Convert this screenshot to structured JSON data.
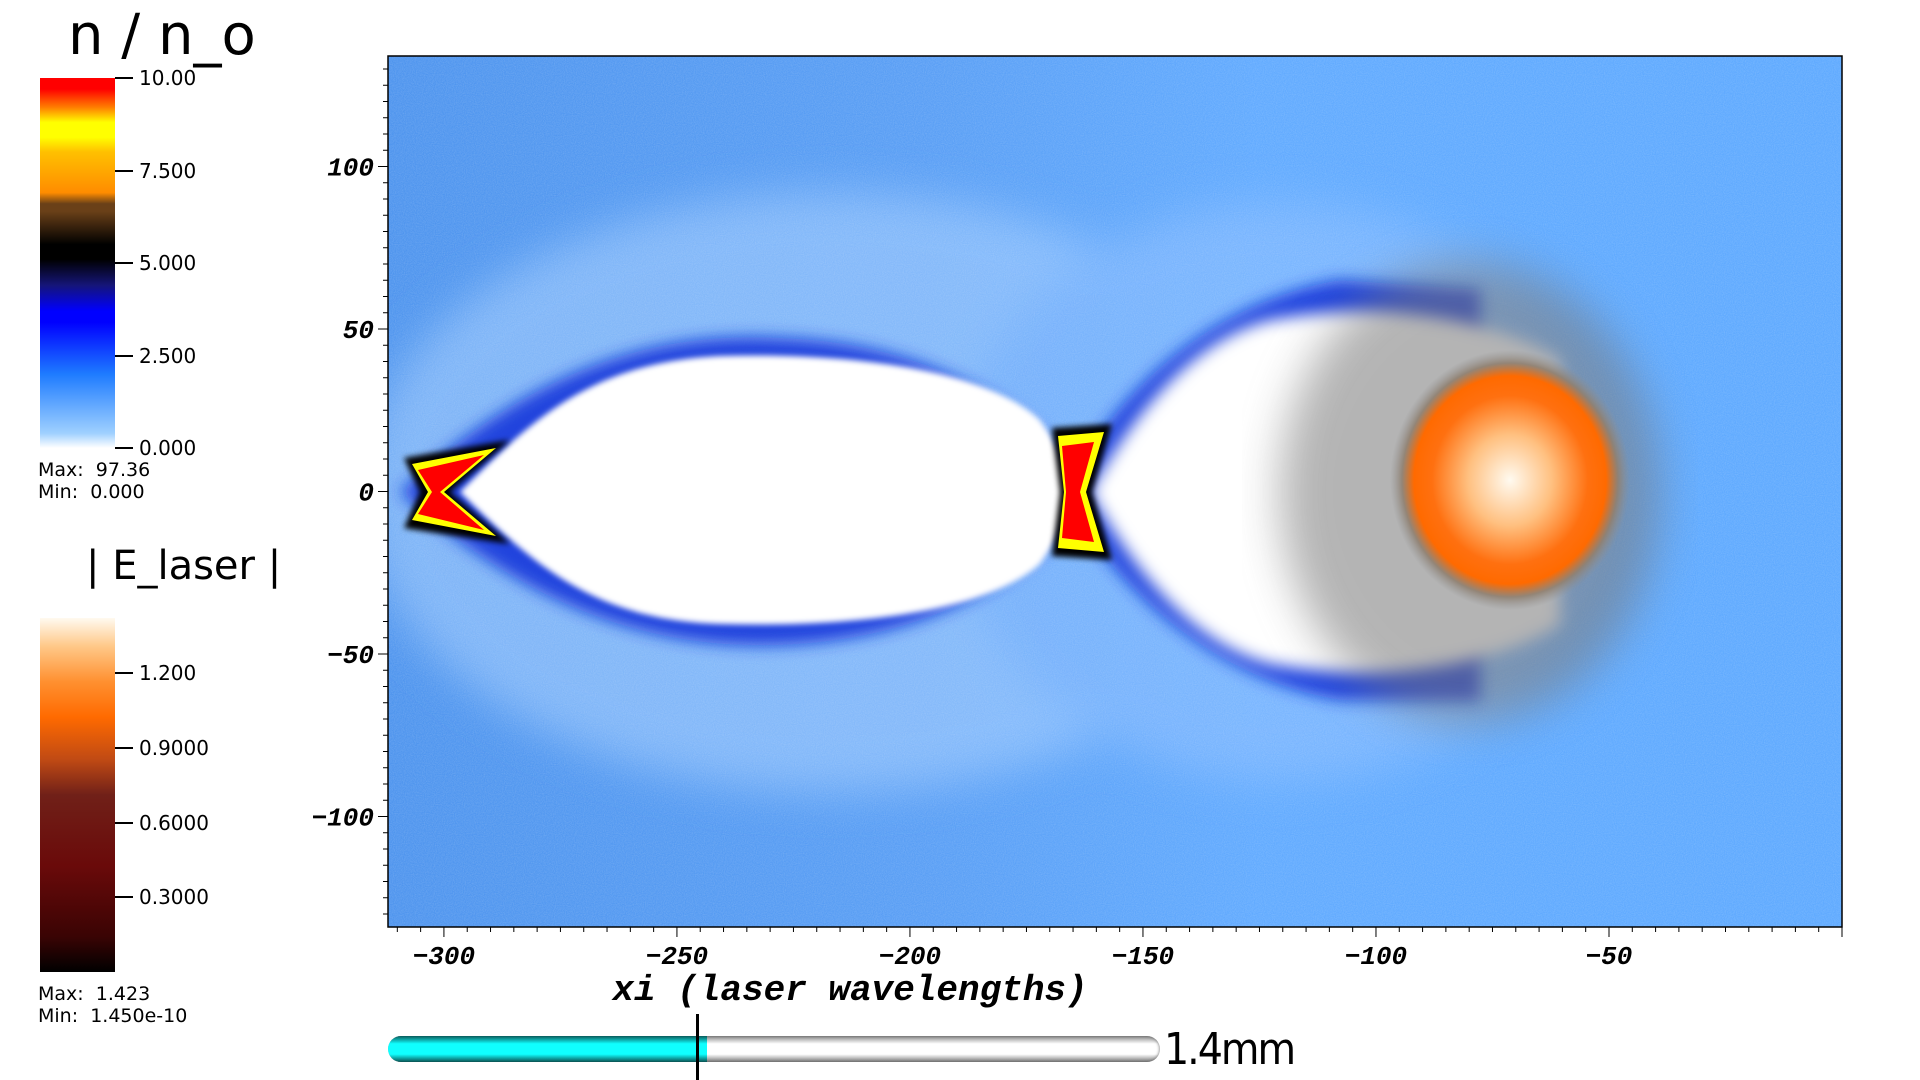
{
  "chart_data": {
    "type": "heatmap",
    "xlabel": "xi (laser wavelengths)",
    "ylabel": "",
    "xlim": [
      -312,
      0
    ],
    "ylim": [
      -134,
      134
    ],
    "xticks": [
      -300,
      -250,
      -200,
      -150,
      -100,
      -50
    ],
    "yticks": [
      100,
      50,
      0,
      -50,
      -100
    ],
    "xtick_labels": [
      "−300",
      "−250",
      "−200",
      "−150",
      "−100",
      "−50"
    ],
    "ytick_labels": [
      "100",
      "50",
      "0",
      "−50",
      "−100"
    ],
    "background_color": "#5faaff",
    "colorbars": [
      {
        "title": "n / n_o",
        "range": [
          0,
          10
        ],
        "ticks": [
          "10.00",
          "7.500",
          "5.000",
          "2.500",
          "0.000"
        ],
        "tick_values": [
          10,
          7.5,
          5,
          2.5,
          0
        ],
        "max_label": "Max:  97.36",
        "min_label": "Min:  0.000",
        "colormap": [
          "#ffffff",
          "#1e7bff",
          "#0000ff",
          "#101060",
          "#000000",
          "#6a4018",
          "#ff8c00",
          "#ffff00",
          "#ff0000"
        ]
      },
      {
        "title": "| E_laser |",
        "range": [
          0,
          1.423
        ],
        "ticks": [
          "1.200",
          "0.9000",
          "0.6000",
          "0.3000"
        ],
        "tick_values": [
          1.2,
          0.9,
          0.6,
          0.3
        ],
        "max_label": "Max:  1.423",
        "min_label": "Min:  1.450e-10",
        "colormap": [
          "#000000",
          "#5a0808",
          "#7a2010",
          "#e05010",
          "#ff6a00",
          "#ffb060",
          "#fffaf0"
        ]
      }
    ],
    "features": {
      "first_bubble_x_range": [
        -300,
        -165
      ],
      "second_bubble_x_range": [
        -165,
        -90
      ],
      "laser_center": [
        -72,
        0
      ]
    }
  },
  "progress": {
    "fraction": 0.4,
    "label": "1.4mm"
  }
}
